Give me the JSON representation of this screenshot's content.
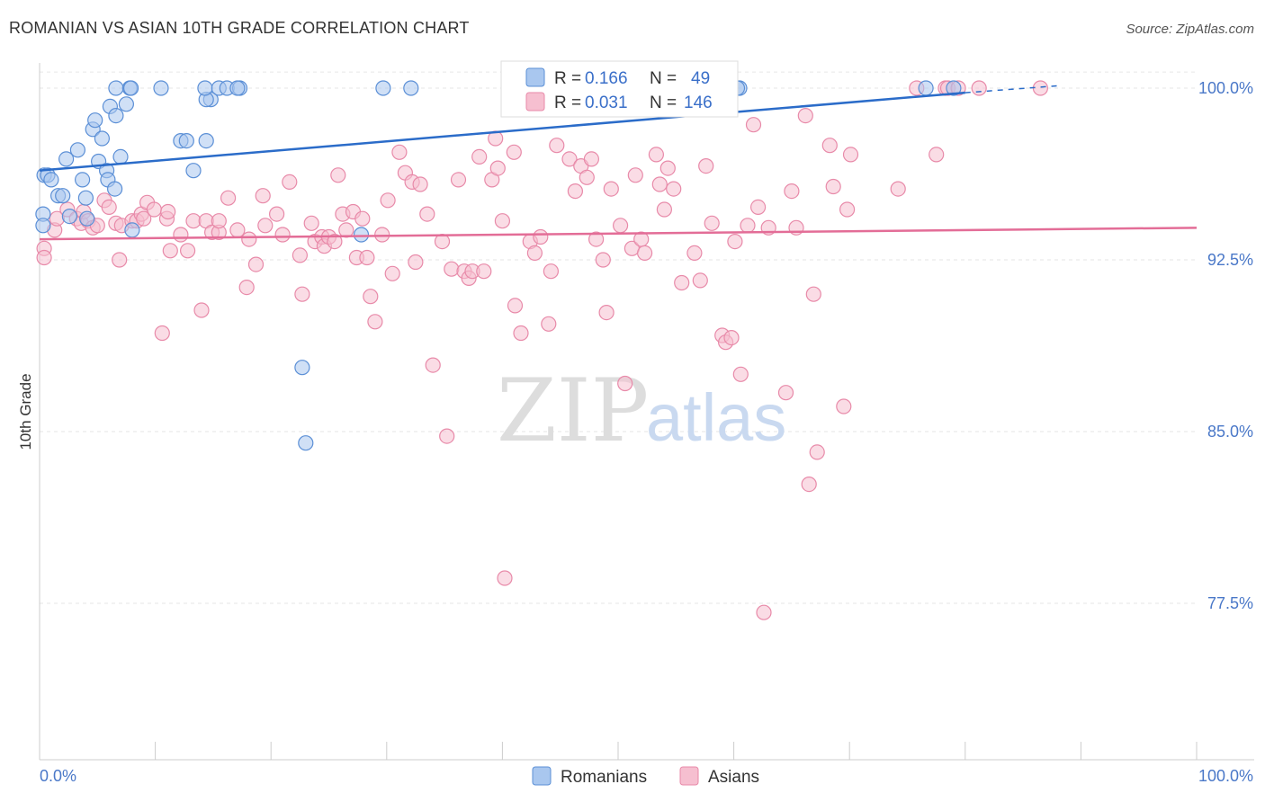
{
  "title": "ROMANIAN VS ASIAN 10TH GRADE CORRELATION CHART",
  "source": "Source: ZipAtlas.com",
  "watermark": {
    "zip": "ZIP",
    "atlas": "atlas"
  },
  "colors": {
    "romanians_fill": "#a9c7ef",
    "romanians_stroke": "#5b8fd6",
    "romanians_line": "#2b6cc9",
    "asians_fill": "#f6bfd0",
    "asians_stroke": "#e88aa9",
    "asians_line": "#e36d97",
    "grid": "#e6e6e6",
    "axis": "#cccccc",
    "tick_label": "#4a78c8"
  },
  "legend": {
    "rows": [
      {
        "r_label": "R =",
        "r_value": "0.166",
        "n_label": "N =",
        "n_value": "49"
      },
      {
        "r_label": "R =",
        "r_value": "0.031",
        "n_label": "N =",
        "n_value": "146"
      }
    ]
  },
  "chart_data": {
    "type": "scatter",
    "title": "ROMANIAN VS ASIAN 10TH GRADE CORRELATION CHART",
    "xlabel": "",
    "ylabel": "10th Grade",
    "xlim": [
      0,
      100
    ],
    "ylim": [
      71.0,
      101.5
    ],
    "x_tick_labels": [
      "0.0%",
      "100.0%"
    ],
    "y_ticks": [
      77.5,
      85.0,
      92.5,
      100.0
    ],
    "y_tick_labels": [
      "77.5%",
      "85.0%",
      "92.5%",
      "100.0%"
    ],
    "grid": true,
    "legend_position": "bottom-center",
    "series": [
      {
        "name": "Romanians",
        "R": 0.166,
        "N": 49,
        "trend": {
          "x0": 0,
          "y0": 96.4,
          "x1": 80,
          "y1": 99.8,
          "dashed_to_x": 88,
          "dashed_to_y": 100.1
        },
        "points": [
          [
            0.3,
            94.5
          ],
          [
            0.3,
            94.0
          ],
          [
            0.4,
            96.2
          ],
          [
            0.7,
            96.2
          ],
          [
            1.0,
            96.0
          ],
          [
            1.6,
            95.3
          ],
          [
            2.0,
            95.3
          ],
          [
            2.3,
            96.9
          ],
          [
            2.6,
            94.4
          ],
          [
            3.3,
            97.3
          ],
          [
            3.7,
            96.0
          ],
          [
            4.0,
            95.2
          ],
          [
            4.1,
            94.3
          ],
          [
            4.6,
            98.2
          ],
          [
            4.8,
            98.6
          ],
          [
            5.1,
            96.8
          ],
          [
            5.4,
            97.8
          ],
          [
            5.8,
            96.4
          ],
          [
            5.9,
            96.0
          ],
          [
            6.1,
            99.2
          ],
          [
            6.5,
            95.6
          ],
          [
            6.6,
            98.8
          ],
          [
            7.0,
            97.0
          ],
          [
            7.5,
            99.3
          ],
          [
            8.0,
            93.8
          ],
          [
            6.6,
            100.0
          ],
          [
            7.8,
            100.0
          ],
          [
            7.9,
            100.0
          ],
          [
            10.5,
            100.0
          ],
          [
            12.2,
            97.7
          ],
          [
            12.7,
            97.7
          ],
          [
            13.3,
            96.4
          ],
          [
            14.4,
            97.7
          ],
          [
            14.8,
            99.5
          ],
          [
            14.4,
            99.5
          ],
          [
            14.3,
            100.0
          ],
          [
            15.5,
            100.0
          ],
          [
            16.2,
            100.0
          ],
          [
            17.3,
            100.0
          ],
          [
            17.1,
            100.0
          ],
          [
            22.7,
            87.8
          ],
          [
            23.0,
            84.5
          ],
          [
            27.8,
            93.6
          ],
          [
            29.7,
            100.0
          ],
          [
            32.1,
            100.0
          ],
          [
            60.5,
            100.0
          ],
          [
            60.3,
            100.0
          ],
          [
            76.6,
            100.0
          ],
          [
            79.0,
            100.0
          ]
        ]
      },
      {
        "name": "Asians",
        "R": 0.031,
        "N": 146,
        "trend": {
          "x0": 0,
          "y0": 93.4,
          "x1": 100,
          "y1": 93.9
        },
        "points": [
          [
            0.4,
            93.0
          ],
          [
            0.4,
            92.6
          ],
          [
            1.3,
            93.8
          ],
          [
            1.5,
            94.3
          ],
          [
            2.4,
            94.7
          ],
          [
            3.2,
            94.3
          ],
          [
            3.6,
            94.1
          ],
          [
            3.8,
            94.6
          ],
          [
            4.2,
            94.2
          ],
          [
            4.6,
            93.9
          ],
          [
            5.0,
            94.0
          ],
          [
            5.6,
            95.1
          ],
          [
            6.0,
            94.8
          ],
          [
            6.6,
            94.1
          ],
          [
            6.9,
            92.5
          ],
          [
            7.1,
            94.0
          ],
          [
            8.0,
            94.2
          ],
          [
            8.4,
            94.2
          ],
          [
            8.8,
            94.5
          ],
          [
            9.0,
            94.3
          ],
          [
            9.3,
            95.0
          ],
          [
            9.9,
            94.7
          ],
          [
            11.0,
            94.3
          ],
          [
            10.6,
            89.3
          ],
          [
            11.1,
            94.6
          ],
          [
            11.3,
            92.9
          ],
          [
            12.2,
            93.6
          ],
          [
            12.8,
            92.9
          ],
          [
            13.3,
            94.2
          ],
          [
            14.0,
            90.3
          ],
          [
            14.4,
            94.2
          ],
          [
            14.9,
            93.7
          ],
          [
            15.5,
            93.7
          ],
          [
            15.5,
            94.2
          ],
          [
            16.3,
            95.2
          ],
          [
            17.1,
            93.8
          ],
          [
            17.9,
            91.3
          ],
          [
            18.1,
            93.4
          ],
          [
            18.7,
            92.3
          ],
          [
            19.3,
            95.3
          ],
          [
            19.5,
            94.0
          ],
          [
            20.5,
            94.5
          ],
          [
            21.0,
            93.6
          ],
          [
            21.6,
            95.9
          ],
          [
            22.5,
            92.7
          ],
          [
            22.7,
            91.0
          ],
          [
            23.5,
            94.1
          ],
          [
            23.8,
            93.3
          ],
          [
            24.4,
            93.5
          ],
          [
            24.6,
            93.1
          ],
          [
            25.0,
            93.5
          ],
          [
            25.5,
            93.3
          ],
          [
            25.8,
            96.2
          ],
          [
            26.2,
            94.5
          ],
          [
            26.5,
            93.8
          ],
          [
            27.1,
            94.6
          ],
          [
            27.4,
            92.6
          ],
          [
            27.9,
            94.3
          ],
          [
            28.3,
            92.6
          ],
          [
            28.6,
            90.9
          ],
          [
            29.0,
            89.8
          ],
          [
            29.6,
            93.6
          ],
          [
            30.1,
            95.1
          ],
          [
            30.5,
            91.9
          ],
          [
            31.1,
            97.2
          ],
          [
            31.6,
            96.3
          ],
          [
            32.2,
            95.9
          ],
          [
            32.5,
            92.4
          ],
          [
            32.9,
            95.8
          ],
          [
            33.5,
            94.5
          ],
          [
            34.0,
            87.9
          ],
          [
            34.8,
            93.3
          ],
          [
            35.2,
            84.8
          ],
          [
            35.6,
            92.1
          ],
          [
            36.2,
            96.0
          ],
          [
            36.7,
            92.0
          ],
          [
            37.1,
            91.7
          ],
          [
            37.4,
            92.0
          ],
          [
            38.0,
            97.0
          ],
          [
            38.4,
            92.0
          ],
          [
            39.1,
            96.0
          ],
          [
            39.4,
            97.8
          ],
          [
            39.6,
            96.5
          ],
          [
            40.0,
            94.2
          ],
          [
            40.2,
            78.6
          ],
          [
            41.0,
            97.2
          ],
          [
            41.1,
            90.5
          ],
          [
            41.6,
            89.3
          ],
          [
            42.4,
            93.3
          ],
          [
            42.8,
            92.8
          ],
          [
            43.3,
            93.5
          ],
          [
            44.0,
            89.7
          ],
          [
            44.2,
            92.0
          ],
          [
            44.7,
            97.5
          ],
          [
            45.8,
            96.9
          ],
          [
            46.3,
            95.5
          ],
          [
            46.8,
            96.6
          ],
          [
            47.3,
            96.1
          ],
          [
            47.7,
            96.9
          ],
          [
            48.1,
            93.4
          ],
          [
            48.7,
            92.5
          ],
          [
            49.0,
            90.2
          ],
          [
            49.4,
            95.6
          ],
          [
            50.2,
            94.0
          ],
          [
            50.6,
            87.1
          ],
          [
            51.2,
            93.0
          ],
          [
            51.5,
            96.2
          ],
          [
            52.0,
            93.4
          ],
          [
            52.3,
            92.8
          ],
          [
            53.3,
            97.1
          ],
          [
            53.6,
            95.8
          ],
          [
            54.0,
            94.7
          ],
          [
            54.3,
            96.5
          ],
          [
            54.8,
            95.6
          ],
          [
            55.5,
            91.5
          ],
          [
            56.6,
            92.8
          ],
          [
            57.1,
            91.6
          ],
          [
            57.6,
            96.6
          ],
          [
            58.1,
            94.1
          ],
          [
            59.0,
            89.2
          ],
          [
            59.3,
            88.9
          ],
          [
            59.8,
            89.1
          ],
          [
            60.1,
            93.3
          ],
          [
            60.6,
            87.5
          ],
          [
            61.2,
            94.0
          ],
          [
            61.7,
            98.4
          ],
          [
            62.1,
            94.8
          ],
          [
            62.6,
            77.1
          ],
          [
            63.0,
            93.9
          ],
          [
            64.5,
            86.7
          ],
          [
            65.0,
            95.5
          ],
          [
            65.4,
            93.9
          ],
          [
            66.2,
            98.8
          ],
          [
            66.5,
            82.7
          ],
          [
            66.9,
            91.0
          ],
          [
            67.2,
            84.1
          ],
          [
            68.3,
            97.5
          ],
          [
            68.6,
            95.7
          ],
          [
            69.5,
            86.1
          ],
          [
            69.8,
            94.7
          ],
          [
            70.1,
            97.1
          ],
          [
            74.2,
            95.6
          ],
          [
            77.5,
            97.1
          ],
          [
            75.8,
            100.0
          ],
          [
            78.3,
            100.0
          ],
          [
            78.5,
            100.0
          ],
          [
            79.4,
            100.0
          ],
          [
            81.2,
            100.0
          ],
          [
            86.5,
            100.0
          ]
        ]
      }
    ]
  },
  "bottom_legend": [
    {
      "label": "Romanians"
    },
    {
      "label": "Asians"
    }
  ]
}
